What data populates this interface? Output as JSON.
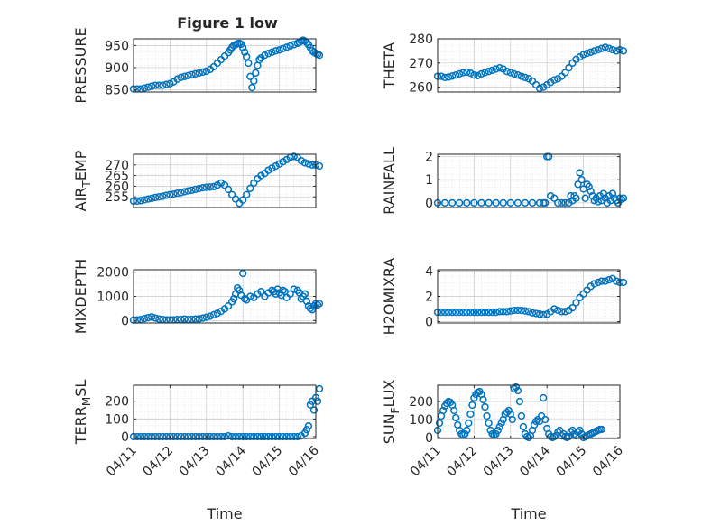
{
  "figure_title": "Figure 1 low",
  "colors": {
    "marker": "#0072BD",
    "axis": "#262626",
    "grid": "#c8c8c8",
    "background": "#ffffff"
  },
  "chart_data": [
    {
      "id": "pressure",
      "type": "scatter",
      "ylabel": "PRESSURE",
      "ylim": [
        845,
        965
      ],
      "yticks": [
        850,
        900,
        950
      ],
      "ytick_labels": [
        "850",
        "900",
        "950"
      ],
      "xlim": [
        0,
        5
      ],
      "xticks": [],
      "grid": true,
      "minor_grid": true,
      "x": [
        0.0,
        0.1,
        0.2,
        0.3,
        0.4,
        0.5,
        0.6,
        0.7,
        0.8,
        0.9,
        1.0,
        1.1,
        1.2,
        1.3,
        1.4,
        1.5,
        1.6,
        1.7,
        1.8,
        1.9,
        2.0,
        2.1,
        2.2,
        2.3,
        2.4,
        2.5,
        2.6,
        2.65,
        2.7,
        2.75,
        2.8,
        2.85,
        2.9,
        2.95,
        3.0,
        3.05,
        3.1,
        3.15,
        3.2,
        3.25,
        3.3,
        3.35,
        3.4,
        3.45,
        3.5,
        3.6,
        3.7,
        3.8,
        3.9,
        4.0,
        4.1,
        4.2,
        4.3,
        4.4,
        4.5,
        4.55,
        4.6,
        4.65,
        4.7,
        4.75,
        4.8,
        4.85,
        4.9,
        4.95,
        5.0,
        5.05,
        5.1
      ],
      "y": [
        852,
        852,
        852,
        854,
        856,
        858,
        860,
        860,
        860,
        862,
        864,
        868,
        874,
        878,
        880,
        882,
        884,
        886,
        888,
        890,
        892,
        896,
        902,
        910,
        918,
        926,
        934,
        940,
        946,
        950,
        952,
        954,
        955,
        953,
        945,
        935,
        925,
        910,
        880,
        855,
        870,
        888,
        905,
        918,
        922,
        928,
        932,
        935,
        938,
        940,
        943,
        946,
        949,
        952,
        955,
        957,
        960,
        962,
        960,
        957,
        952,
        945,
        938,
        935,
        932,
        930,
        928
      ]
    },
    {
      "id": "theta",
      "type": "scatter",
      "ylabel": "THETA",
      "ylim": [
        258,
        280
      ],
      "yticks": [
        260,
        270,
        280
      ],
      "ytick_labels": [
        "260",
        "270",
        "280"
      ],
      "xlim": [
        0,
        5
      ],
      "xticks": [],
      "grid": true,
      "minor_grid": true,
      "x": [
        0.0,
        0.1,
        0.2,
        0.3,
        0.4,
        0.5,
        0.6,
        0.7,
        0.8,
        0.9,
        1.0,
        1.1,
        1.2,
        1.3,
        1.4,
        1.5,
        1.6,
        1.7,
        1.8,
        1.9,
        2.0,
        2.1,
        2.2,
        2.3,
        2.4,
        2.5,
        2.6,
        2.7,
        2.8,
        2.9,
        3.0,
        3.1,
        3.2,
        3.3,
        3.4,
        3.5,
        3.6,
        3.7,
        3.8,
        3.9,
        4.0,
        4.1,
        4.2,
        4.3,
        4.4,
        4.5,
        4.6,
        4.7,
        4.8,
        4.9,
        5.0,
        5.1
      ],
      "y": [
        264.5,
        264.5,
        264.0,
        264.2,
        264.6,
        265.0,
        265.5,
        266.0,
        266.2,
        265.8,
        265.0,
        264.8,
        265.5,
        266.0,
        266.5,
        267.0,
        267.5,
        268.0,
        267.5,
        266.5,
        266.0,
        265.5,
        265.0,
        264.5,
        264.0,
        263.5,
        262.5,
        261.0,
        259.5,
        260.0,
        261.0,
        262.0,
        263.0,
        263.5,
        264.5,
        266.0,
        268.0,
        270.0,
        271.5,
        272.5,
        273.5,
        274.0,
        274.5,
        275.0,
        275.5,
        276.0,
        276.5,
        276.0,
        275.5,
        275.0,
        275.5,
        275.0
      ]
    },
    {
      "id": "air_temp",
      "type": "scatter",
      "ylabel": "AIR_TEMP",
      "ylabel_main": "AIR",
      "ylabel_sub": "T",
      "ylabel_rest": "EMP",
      "ylim": [
        250,
        275
      ],
      "yticks": [
        255,
        260,
        265,
        270
      ],
      "ytick_labels": [
        "255",
        "260",
        "265",
        "270"
      ],
      "xlim": [
        0,
        5
      ],
      "xticks": [],
      "grid": true,
      "minor_grid": true,
      "x": [
        0.0,
        0.1,
        0.2,
        0.3,
        0.4,
        0.5,
        0.6,
        0.7,
        0.8,
        0.9,
        1.0,
        1.1,
        1.2,
        1.3,
        1.4,
        1.5,
        1.6,
        1.7,
        1.8,
        1.9,
        2.0,
        2.1,
        2.2,
        2.3,
        2.4,
        2.5,
        2.6,
        2.7,
        2.8,
        2.9,
        3.0,
        3.1,
        3.2,
        3.3,
        3.4,
        3.5,
        3.6,
        3.7,
        3.8,
        3.9,
        4.0,
        4.1,
        4.2,
        4.3,
        4.4,
        4.5,
        4.6,
        4.7,
        4.8,
        4.9,
        5.0,
        5.1
      ],
      "y": [
        253.0,
        253.0,
        253.2,
        253.6,
        254.0,
        254.3,
        254.7,
        255.0,
        255.3,
        255.7,
        256.0,
        256.3,
        256.7,
        257.0,
        257.4,
        257.8,
        258.1,
        258.5,
        258.9,
        259.3,
        259.5,
        259.6,
        259.8,
        260.5,
        261.5,
        260.5,
        258.5,
        256.0,
        254.0,
        252.0,
        253.5,
        256.0,
        259.0,
        261.5,
        263.5,
        265.0,
        266.0,
        267.5,
        268.5,
        269.5,
        270.5,
        271.5,
        272.5,
        273.5,
        274.0,
        273.5,
        272.0,
        271.0,
        270.5,
        270.0,
        270.0,
        269.5
      ]
    },
    {
      "id": "rainfall",
      "type": "scatter",
      "ylabel": "RAINFALL",
      "ylim": [
        -0.2,
        2.1
      ],
      "yticks": [
        0,
        1,
        2
      ],
      "ytick_labels": [
        "0",
        "1",
        "2"
      ],
      "xlim": [
        0,
        5
      ],
      "xticks": [],
      "grid": true,
      "minor_grid": true,
      "x": [
        0.0,
        0.2,
        0.4,
        0.6,
        0.8,
        1.0,
        1.2,
        1.4,
        1.6,
        1.8,
        2.0,
        2.2,
        2.4,
        2.6,
        2.8,
        2.9,
        2.95,
        3.0,
        3.05,
        3.1,
        3.2,
        3.3,
        3.4,
        3.5,
        3.6,
        3.65,
        3.7,
        3.75,
        3.8,
        3.85,
        3.9,
        3.95,
        4.0,
        4.05,
        4.1,
        4.15,
        4.2,
        4.25,
        4.3,
        4.35,
        4.4,
        4.45,
        4.5,
        4.55,
        4.6,
        4.65,
        4.7,
        4.75,
        4.8,
        4.85,
        4.9,
        4.95,
        5.0,
        5.05,
        5.1
      ],
      "y": [
        0,
        0,
        0,
        0,
        0,
        0,
        0,
        0,
        0,
        0,
        0,
        0,
        0,
        0,
        0,
        0,
        0,
        2.0,
        2.0,
        0.3,
        0.2,
        0,
        0,
        0,
        0,
        0.3,
        0.1,
        0.3,
        0.2,
        0.8,
        1.3,
        1.0,
        0.6,
        0.2,
        0.8,
        0.7,
        0.5,
        0.3,
        0.1,
        0.2,
        0.05,
        0.3,
        0.1,
        0.4,
        0.2,
        0,
        0.3,
        0.1,
        0.4,
        0.2,
        0.1,
        0,
        0.2,
        0.15,
        0.2
      ]
    },
    {
      "id": "mixdepth",
      "type": "scatter",
      "ylabel": "MIXDEPTH",
      "ylim": [
        -100,
        2100
      ],
      "yticks": [
        0,
        1000,
        2000
      ],
      "ytick_labels": [
        "0",
        "1000",
        "2000"
      ],
      "xlim": [
        0,
        5
      ],
      "xticks": [],
      "grid": true,
      "minor_grid": true,
      "x": [
        0.0,
        0.1,
        0.2,
        0.3,
        0.4,
        0.5,
        0.6,
        0.7,
        0.8,
        0.9,
        1.0,
        1.1,
        1.2,
        1.3,
        1.4,
        1.5,
        1.6,
        1.7,
        1.8,
        1.9,
        2.0,
        2.1,
        2.2,
        2.3,
        2.4,
        2.5,
        2.6,
        2.7,
        2.75,
        2.8,
        2.85,
        2.9,
        2.95,
        3.0,
        3.05,
        3.1,
        3.2,
        3.3,
        3.4,
        3.5,
        3.6,
        3.7,
        3.8,
        3.85,
        3.9,
        3.95,
        4.0,
        4.05,
        4.1,
        4.15,
        4.2,
        4.3,
        4.4,
        4.5,
        4.55,
        4.6,
        4.65,
        4.7,
        4.75,
        4.8,
        4.85,
        4.9,
        4.95,
        5.0,
        5.05,
        5.1
      ],
      "y": [
        20,
        25,
        40,
        80,
        120,
        150,
        100,
        60,
        40,
        30,
        25,
        30,
        40,
        50,
        60,
        40,
        50,
        60,
        70,
        100,
        140,
        180,
        240,
        300,
        380,
        480,
        600,
        780,
        900,
        1100,
        1350,
        1250,
        1050,
        1950,
        900,
        850,
        1000,
        950,
        1100,
        1200,
        1000,
        1150,
        1250,
        1200,
        1100,
        1300,
        1150,
        1050,
        1250,
        1200,
        950,
        1100,
        1300,
        1250,
        1150,
        900,
        1000,
        1100,
        800,
        600,
        500,
        450,
        600,
        700,
        650,
        700
      ]
    },
    {
      "id": "h2omixra",
      "type": "scatter",
      "ylabel": "H2OMIXRA",
      "ylim": [
        -0.1,
        4.1
      ],
      "yticks": [
        0,
        2,
        4
      ],
      "ytick_labels": [
        "0",
        "2",
        "4"
      ],
      "xlim": [
        0,
        5
      ],
      "xticks": [],
      "grid": true,
      "minor_grid": true,
      "x": [
        0.0,
        0.1,
        0.2,
        0.3,
        0.4,
        0.5,
        0.6,
        0.7,
        0.8,
        0.9,
        1.0,
        1.1,
        1.2,
        1.3,
        1.4,
        1.5,
        1.6,
        1.7,
        1.8,
        1.9,
        2.0,
        2.1,
        2.2,
        2.3,
        2.4,
        2.5,
        2.6,
        2.7,
        2.8,
        2.9,
        3.0,
        3.1,
        3.2,
        3.3,
        3.4,
        3.5,
        3.6,
        3.7,
        3.8,
        3.9,
        4.0,
        4.1,
        4.2,
        4.3,
        4.4,
        4.5,
        4.6,
        4.7,
        4.8,
        4.9,
        5.0,
        5.1
      ],
      "y": [
        0.75,
        0.75,
        0.75,
        0.75,
        0.75,
        0.75,
        0.75,
        0.75,
        0.75,
        0.75,
        0.75,
        0.75,
        0.75,
        0.75,
        0.75,
        0.75,
        0.75,
        0.8,
        0.8,
        0.8,
        0.85,
        0.9,
        0.9,
        0.9,
        0.85,
        0.8,
        0.7,
        0.65,
        0.6,
        0.55,
        0.6,
        0.8,
        1.0,
        0.9,
        0.8,
        0.8,
        0.9,
        1.1,
        1.5,
        1.9,
        2.2,
        2.5,
        2.8,
        3.0,
        3.1,
        3.2,
        3.2,
        3.3,
        3.4,
        3.2,
        3.1,
        3.1
      ]
    },
    {
      "id": "terr_msl",
      "type": "scatter",
      "ylabel": "TERR_MSL",
      "ylabel_main": "TERR",
      "ylabel_sub": "M",
      "ylabel_rest": "SL",
      "ylim": [
        -10,
        290
      ],
      "yticks": [
        0,
        100,
        200
      ],
      "ytick_labels": [
        "0",
        "100",
        "200"
      ],
      "xlim": [
        0,
        5
      ],
      "xticks": [
        0,
        1,
        2,
        3,
        4,
        5
      ],
      "xtick_labels": [
        "04/11",
        "04/12",
        "04/13",
        "04/14",
        "04/15",
        "04/16"
      ],
      "xlabel": "Time",
      "grid": true,
      "minor_grid": true,
      "x": [
        0.0,
        0.1,
        0.2,
        0.3,
        0.4,
        0.5,
        0.6,
        0.7,
        0.8,
        0.9,
        1.0,
        1.1,
        1.2,
        1.3,
        1.4,
        1.5,
        1.6,
        1.7,
        1.8,
        1.9,
        2.0,
        2.1,
        2.2,
        2.3,
        2.4,
        2.5,
        2.6,
        2.7,
        2.8,
        2.9,
        3.0,
        3.1,
        3.2,
        3.3,
        3.4,
        3.5,
        3.6,
        3.7,
        3.8,
        3.9,
        4.0,
        4.1,
        4.2,
        4.3,
        4.4,
        4.5,
        4.6,
        4.7,
        4.75,
        4.8,
        4.85,
        4.9,
        4.95,
        5.0,
        5.05,
        5.1
      ],
      "y": [
        0,
        0,
        0,
        0,
        0,
        0,
        0,
        0,
        0,
        0,
        0,
        0,
        0,
        0,
        0,
        0,
        0,
        0,
        0,
        0,
        0,
        0,
        0,
        0,
        0,
        0,
        5,
        0,
        0,
        0,
        0,
        0,
        0,
        0,
        0,
        0,
        0,
        0,
        0,
        0,
        0,
        0,
        0,
        0,
        0,
        0,
        5,
        20,
        40,
        60,
        180,
        200,
        150,
        220,
        200,
        270
      ]
    },
    {
      "id": "sun_flux",
      "type": "scatter",
      "ylabel": "SUN_FLUX",
      "ylabel_main": "SUN",
      "ylabel_sub": "F",
      "ylabel_rest": "LUX",
      "ylim": [
        -5,
        290
      ],
      "yticks": [
        0,
        100,
        200
      ],
      "ytick_labels": [
        "0",
        "100",
        "200"
      ],
      "xlim": [
        0,
        5
      ],
      "xticks": [
        0,
        1,
        2,
        3,
        4,
        5
      ],
      "xtick_labels": [
        "04/11",
        "04/12",
        "04/13",
        "04/14",
        "04/15",
        "04/16"
      ],
      "xlabel": "Time",
      "grid": true,
      "minor_grid": true,
      "x": [
        0.0,
        0.05,
        0.1,
        0.15,
        0.2,
        0.25,
        0.3,
        0.35,
        0.4,
        0.45,
        0.5,
        0.55,
        0.6,
        0.65,
        0.7,
        0.75,
        0.8,
        0.85,
        0.9,
        0.95,
        1.0,
        1.05,
        1.1,
        1.15,
        1.2,
        1.25,
        1.3,
        1.35,
        1.4,
        1.45,
        1.5,
        1.55,
        1.6,
        1.65,
        1.7,
        1.75,
        1.8,
        1.85,
        1.9,
        1.95,
        2.0,
        2.05,
        2.1,
        2.15,
        2.2,
        2.25,
        2.3,
        2.35,
        2.4,
        2.45,
        2.5,
        2.55,
        2.6,
        2.65,
        2.7,
        2.75,
        2.8,
        2.85,
        2.9,
        2.95,
        3.0,
        3.05,
        3.1,
        3.15,
        3.2,
        3.25,
        3.3,
        3.35,
        3.4,
        3.45,
        3.5,
        3.55,
        3.6,
        3.65,
        3.7,
        3.75,
        3.8,
        3.85,
        3.9,
        3.95,
        4.0,
        4.05,
        4.1,
        4.15,
        4.2,
        4.25,
        4.3,
        4.35,
        4.4,
        4.45,
        4.5
      ],
      "y": [
        40,
        80,
        120,
        150,
        175,
        190,
        200,
        195,
        180,
        150,
        110,
        70,
        40,
        20,
        15,
        20,
        40,
        80,
        130,
        180,
        220,
        240,
        250,
        255,
        240,
        210,
        170,
        120,
        80,
        40,
        20,
        15,
        20,
        40,
        60,
        80,
        100,
        130,
        140,
        150,
        130,
        100,
        270,
        280,
        260,
        200,
        120,
        60,
        20,
        5,
        0,
        10,
        40,
        70,
        90,
        100,
        90,
        120,
        220,
        100,
        50,
        20,
        5,
        0,
        5,
        10,
        30,
        40,
        10,
        20,
        5,
        0,
        5,
        30,
        40,
        20,
        10,
        30,
        40,
        20,
        0,
        5,
        10,
        15,
        20,
        25,
        30,
        35,
        40,
        45,
        45
      ]
    }
  ]
}
